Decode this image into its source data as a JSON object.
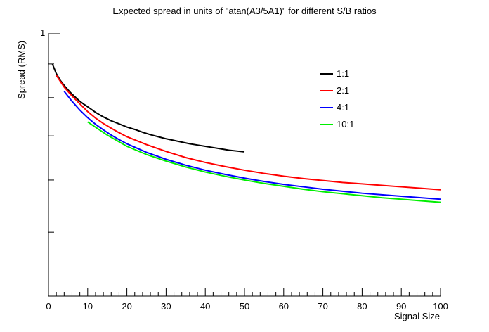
{
  "chart_data": {
    "type": "line",
    "title": "Expected spread in units of \"atan(A3/5A1)\" for different S/B ratios",
    "xlabel": "Signal Size",
    "ylabel": "Spread (RMS)",
    "xlim": [
      0,
      100
    ],
    "ylim": [
      0.4,
      1
    ],
    "y_scale": "log",
    "xticks": [
      "0",
      "10",
      "20",
      "30",
      "40",
      "50",
      "60",
      "70",
      "80",
      "90",
      "100"
    ],
    "ytick_labels": [
      "1"
    ],
    "grid": false,
    "legend_position": "top-right",
    "series": [
      {
        "name": "1:1",
        "color": "#000000",
        "x": [
          1,
          2,
          3,
          4,
          5,
          6,
          7,
          8,
          9,
          10,
          12,
          14,
          16,
          18,
          20,
          22,
          24,
          26,
          28,
          30,
          32,
          34,
          36,
          38,
          40,
          42,
          44,
          46,
          48,
          50
        ],
        "y": [
          0.9,
          0.87,
          0.85,
          0.835,
          0.822,
          0.81,
          0.8,
          0.79,
          0.782,
          0.775,
          0.76,
          0.748,
          0.738,
          0.73,
          0.722,
          0.716,
          0.709,
          0.703,
          0.698,
          0.693,
          0.689,
          0.685,
          0.681,
          0.678,
          0.675,
          0.672,
          0.669,
          0.666,
          0.664,
          0.662
        ]
      },
      {
        "name": "2:1",
        "color": "#ff0000",
        "x": [
          2,
          4,
          6,
          8,
          10,
          12,
          14,
          16,
          18,
          20,
          25,
          30,
          35,
          40,
          45,
          50,
          55,
          60,
          65,
          70,
          75,
          80,
          85,
          90,
          95,
          100
        ],
        "y": [
          0.865,
          0.83,
          0.805,
          0.783,
          0.762,
          0.745,
          0.731,
          0.719,
          0.708,
          0.698,
          0.679,
          0.663,
          0.649,
          0.638,
          0.629,
          0.621,
          0.614,
          0.608,
          0.603,
          0.599,
          0.595,
          0.592,
          0.589,
          0.586,
          0.583,
          0.58
        ]
      },
      {
        "name": "4:1",
        "color": "#0000ff",
        "x": [
          4,
          6,
          8,
          10,
          12,
          14,
          16,
          18,
          20,
          25,
          30,
          35,
          40,
          45,
          50,
          55,
          60,
          65,
          70,
          75,
          80,
          85,
          90,
          95,
          100
        ],
        "y": [
          0.818,
          0.79,
          0.766,
          0.746,
          0.729,
          0.715,
          0.702,
          0.691,
          0.681,
          0.661,
          0.645,
          0.632,
          0.621,
          0.612,
          0.604,
          0.597,
          0.591,
          0.586,
          0.581,
          0.577,
          0.573,
          0.57,
          0.567,
          0.564,
          0.561
        ]
      },
      {
        "name": "10:1",
        "color": "#00ee00",
        "x": [
          10,
          15,
          20,
          25,
          30,
          35,
          40,
          45,
          50,
          55,
          60,
          65,
          70,
          75,
          80,
          85,
          90,
          95,
          100
        ],
        "y": [
          0.735,
          0.702,
          0.675,
          0.656,
          0.641,
          0.628,
          0.617,
          0.608,
          0.6,
          0.593,
          0.587,
          0.581,
          0.576,
          0.572,
          0.568,
          0.564,
          0.561,
          0.558,
          0.555
        ]
      }
    ]
  }
}
